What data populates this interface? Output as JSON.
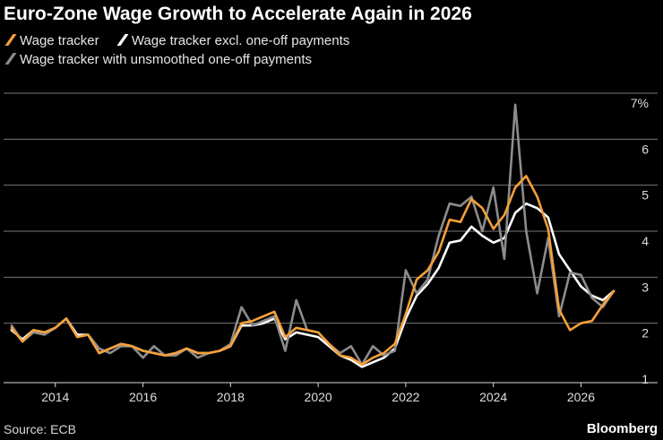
{
  "title": "Euro-Zone Wage Growth to Accelerate Again in 2026",
  "source": "Source: ECB",
  "brand": "Bloomberg",
  "colors": {
    "wage": "#f5a03a",
    "excl": "#ffffff",
    "unsmoothed": "#8c8c8c",
    "grid": "#777777",
    "axis": "#dddddd"
  },
  "chart_data": {
    "type": "line",
    "title": "Euro-Zone Wage Growth to Accelerate Again in 2026",
    "xlabel": "",
    "ylabel": "%",
    "xlim": [
      2012.9,
      2027.3
    ],
    "ylim": [
      1,
      7
    ],
    "y_ticks": [
      1,
      2,
      3,
      4,
      5,
      6,
      7
    ],
    "y_tick_labels": [
      "1",
      "2",
      "3",
      "4",
      "5",
      "6",
      "7%"
    ],
    "x_ticks": [
      2014,
      2016,
      2018,
      2020,
      2022,
      2024,
      2026
    ],
    "x_tick_labels": [
      "2014",
      "2016",
      "2018",
      "2020",
      "2022",
      "2024",
      "2026"
    ],
    "x": [
      2013.0,
      2013.25,
      2013.5,
      2013.75,
      2014.0,
      2014.25,
      2014.5,
      2014.75,
      2015.0,
      2015.25,
      2015.5,
      2015.75,
      2016.0,
      2016.25,
      2016.5,
      2016.75,
      2017.0,
      2017.25,
      2017.5,
      2017.75,
      2018.0,
      2018.25,
      2018.5,
      2018.75,
      2019.0,
      2019.25,
      2019.5,
      2019.75,
      2020.0,
      2020.25,
      2020.5,
      2020.75,
      2021.0,
      2021.25,
      2021.5,
      2021.75,
      2022.0,
      2022.25,
      2022.5,
      2022.75,
      2023.0,
      2023.25,
      2023.5,
      2023.75,
      2024.0,
      2024.25,
      2024.5,
      2024.75,
      2025.0,
      2025.25,
      2025.5,
      2025.75,
      2026.0,
      2026.25,
      2026.5,
      2026.75
    ],
    "series": [
      {
        "name": "Wage tracker excl. one-off payments",
        "color": "#ffffff",
        "values": [
          1.85,
          1.65,
          1.85,
          1.8,
          1.9,
          2.1,
          1.75,
          1.75,
          1.35,
          1.45,
          1.55,
          1.5,
          1.4,
          1.35,
          1.3,
          1.35,
          1.45,
          1.35,
          1.35,
          1.4,
          1.5,
          1.95,
          1.95,
          2.0,
          2.1,
          1.65,
          1.8,
          1.75,
          1.7,
          1.5,
          1.3,
          1.2,
          1.05,
          1.15,
          1.25,
          1.45,
          2.1,
          2.6,
          2.85,
          3.2,
          3.75,
          3.8,
          4.1,
          3.9,
          3.75,
          3.85,
          4.4,
          4.6,
          4.5,
          4.3,
          3.5,
          3.15,
          2.8,
          2.6,
          2.5,
          2.7
        ]
      },
      {
        "name": "Wage tracker with unsmoothed one-off payments",
        "color": "#8c8c8c",
        "values": [
          1.95,
          1.6,
          1.8,
          1.75,
          1.9,
          2.1,
          1.7,
          1.75,
          1.45,
          1.35,
          1.5,
          1.5,
          1.25,
          1.5,
          1.3,
          1.3,
          1.45,
          1.25,
          1.35,
          1.4,
          1.55,
          2.35,
          1.95,
          2.05,
          2.15,
          1.4,
          2.5,
          1.85,
          1.8,
          1.55,
          1.35,
          1.5,
          1.1,
          1.5,
          1.3,
          1.4,
          3.15,
          2.65,
          2.95,
          3.9,
          4.6,
          4.55,
          4.75,
          4.0,
          4.95,
          3.4,
          6.75,
          4.0,
          2.65,
          3.85,
          2.15,
          3.1,
          3.05,
          2.55,
          2.35,
          2.7
        ]
      },
      {
        "name": "Wage tracker",
        "color": "#f5a03a",
        "values": [
          1.9,
          1.6,
          1.85,
          1.8,
          1.9,
          2.1,
          1.7,
          1.75,
          1.35,
          1.45,
          1.55,
          1.5,
          1.4,
          1.35,
          1.3,
          1.35,
          1.45,
          1.35,
          1.35,
          1.4,
          1.5,
          2.0,
          2.05,
          2.15,
          2.25,
          1.7,
          1.9,
          1.85,
          1.8,
          1.55,
          1.3,
          1.25,
          1.1,
          1.25,
          1.35,
          1.55,
          2.2,
          2.95,
          3.15,
          3.55,
          4.25,
          4.2,
          4.7,
          4.5,
          4.05,
          4.35,
          4.95,
          5.2,
          4.75,
          4.05,
          2.3,
          1.85,
          2.0,
          2.05,
          2.4,
          2.7
        ]
      }
    ],
    "legend": [
      "Wage tracker",
      "Wage tracker excl. one-off payments",
      "Wage tracker with unsmoothed one-off payments"
    ],
    "grid": true
  }
}
